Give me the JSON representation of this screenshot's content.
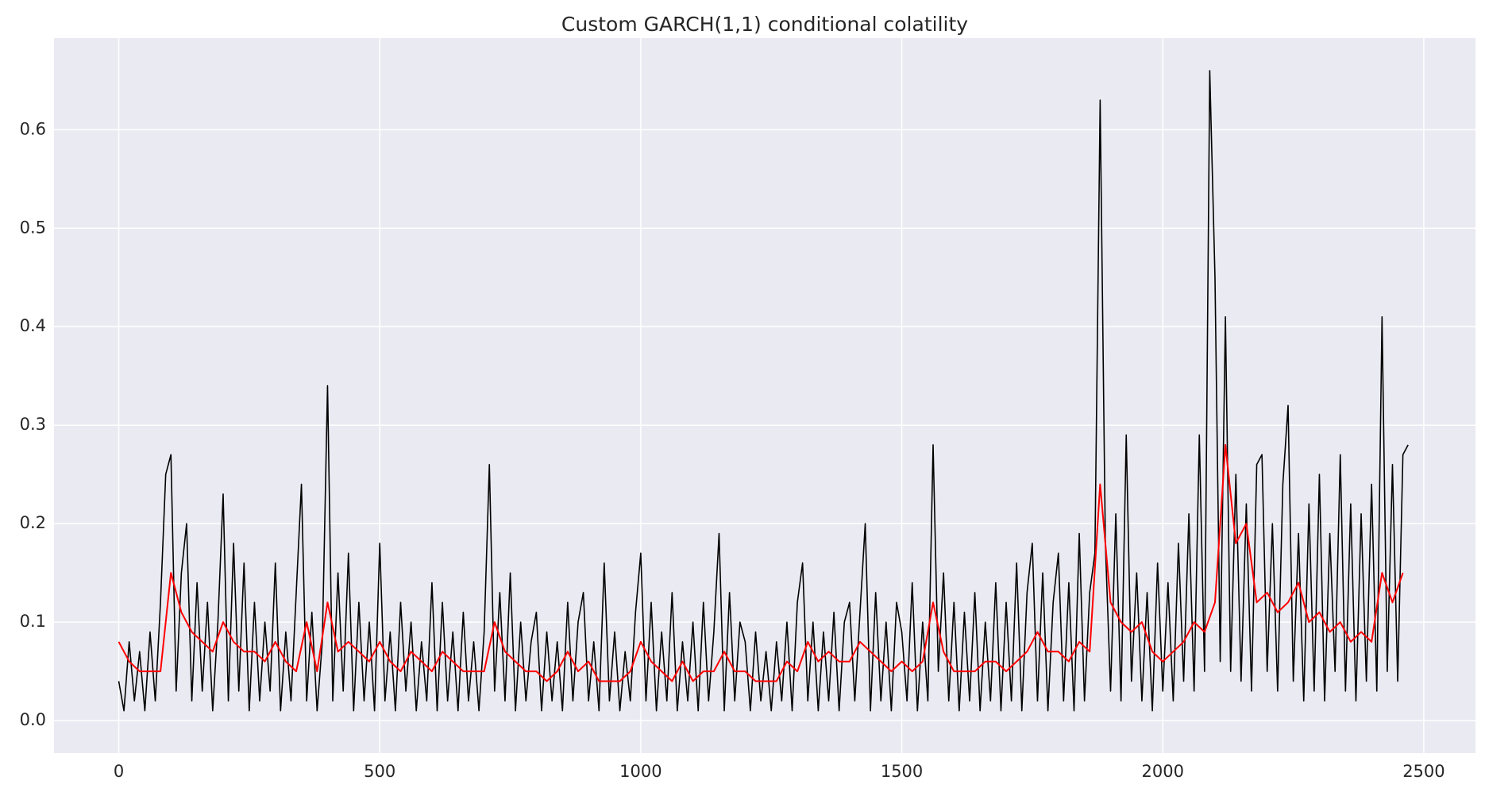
{
  "chart_data": {
    "type": "line",
    "title": "Custom GARCH(1,1) conditional colatility",
    "xlim": [
      -124,
      2599
    ],
    "ylim": [
      -0.033,
      0.693
    ],
    "xticks": [
      0,
      500,
      1000,
      1500,
      2000,
      2500
    ],
    "yticks": [
      {
        "value": 0,
        "label": "0.0"
      },
      0.1,
      0.2,
      0.3,
      0.4,
      0.5,
      0.6
    ],
    "grid": true,
    "series": [
      {
        "color": "#000000",
        "x": [
          0,
          10,
          20,
          30,
          40,
          50,
          60,
          70,
          80,
          90,
          100,
          110,
          120,
          130,
          140,
          150,
          160,
          170,
          180,
          190,
          200,
          210,
          220,
          230,
          240,
          250,
          260,
          270,
          280,
          290,
          300,
          310,
          320,
          330,
          340,
          350,
          360,
          370,
          380,
          390,
          400,
          410,
          420,
          430,
          440,
          450,
          460,
          470,
          480,
          490,
          500,
          510,
          520,
          530,
          540,
          550,
          560,
          570,
          580,
          590,
          600,
          610,
          620,
          630,
          640,
          650,
          660,
          670,
          680,
          690,
          700,
          710,
          720,
          730,
          740,
          750,
          760,
          770,
          780,
          790,
          800,
          810,
          820,
          830,
          840,
          850,
          860,
          870,
          880,
          890,
          900,
          910,
          920,
          930,
          940,
          950,
          960,
          970,
          980,
          990,
          1000,
          1010,
          1020,
          1030,
          1040,
          1050,
          1060,
          1070,
          1080,
          1090,
          1100,
          1110,
          1120,
          1130,
          1140,
          1150,
          1160,
          1170,
          1180,
          1190,
          1200,
          1210,
          1220,
          1230,
          1240,
          1250,
          1260,
          1270,
          1280,
          1290,
          1300,
          1310,
          1320,
          1330,
          1340,
          1350,
          1360,
          1370,
          1380,
          1390,
          1400,
          1410,
          1420,
          1430,
          1440,
          1450,
          1460,
          1470,
          1480,
          1490,
          1500,
          1510,
          1520,
          1530,
          1540,
          1550,
          1560,
          1570,
          1580,
          1590,
          1600,
          1610,
          1620,
          1630,
          1640,
          1650,
          1660,
          1670,
          1680,
          1690,
          1700,
          1710,
          1720,
          1730,
          1740,
          1750,
          1760,
          1770,
          1780,
          1790,
          1800,
          1810,
          1820,
          1830,
          1840,
          1850,
          1860,
          1870,
          1880,
          1890,
          1900,
          1910,
          1920,
          1930,
          1940,
          1950,
          1960,
          1970,
          1980,
          1990,
          2000,
          2010,
          2020,
          2030,
          2040,
          2050,
          2060,
          2070,
          2080,
          2090,
          2100,
          2110,
          2120,
          2130,
          2140,
          2150,
          2160,
          2170,
          2180,
          2190,
          2200,
          2210,
          2220,
          2230,
          2240,
          2250,
          2260,
          2270,
          2280,
          2290,
          2300,
          2310,
          2320,
          2330,
          2340,
          2350,
          2360,
          2370,
          2380,
          2390,
          2400,
          2410,
          2420,
          2430,
          2440,
          2450,
          2460,
          2470
        ],
        "values": [
          0.04,
          0.01,
          0.08,
          0.02,
          0.07,
          0.01,
          0.09,
          0.02,
          0.12,
          0.25,
          0.27,
          0.03,
          0.15,
          0.2,
          0.02,
          0.14,
          0.03,
          0.12,
          0.01,
          0.1,
          0.23,
          0.02,
          0.18,
          0.03,
          0.16,
          0.01,
          0.12,
          0.02,
          0.1,
          0.03,
          0.16,
          0.01,
          0.09,
          0.02,
          0.13,
          0.24,
          0.02,
          0.11,
          0.01,
          0.08,
          0.34,
          0.02,
          0.15,
          0.03,
          0.17,
          0.01,
          0.12,
          0.02,
          0.1,
          0.01,
          0.18,
          0.02,
          0.09,
          0.01,
          0.12,
          0.03,
          0.1,
          0.01,
          0.08,
          0.02,
          0.14,
          0.01,
          0.12,
          0.02,
          0.09,
          0.01,
          0.11,
          0.02,
          0.08,
          0.01,
          0.09,
          0.26,
          0.03,
          0.13,
          0.02,
          0.15,
          0.01,
          0.1,
          0.02,
          0.08,
          0.11,
          0.01,
          0.09,
          0.02,
          0.08,
          0.01,
          0.12,
          0.02,
          0.1,
          0.13,
          0.02,
          0.08,
          0.01,
          0.16,
          0.02,
          0.09,
          0.01,
          0.07,
          0.02,
          0.11,
          0.17,
          0.02,
          0.12,
          0.01,
          0.09,
          0.02,
          0.13,
          0.01,
          0.08,
          0.02,
          0.1,
          0.01,
          0.12,
          0.02,
          0.09,
          0.19,
          0.01,
          0.13,
          0.02,
          0.1,
          0.08,
          0.01,
          0.09,
          0.02,
          0.07,
          0.01,
          0.08,
          0.02,
          0.1,
          0.01,
          0.12,
          0.16,
          0.02,
          0.1,
          0.01,
          0.09,
          0.02,
          0.11,
          0.01,
          0.1,
          0.12,
          0.02,
          0.11,
          0.2,
          0.01,
          0.13,
          0.02,
          0.1,
          0.01,
          0.12,
          0.09,
          0.02,
          0.14,
          0.01,
          0.1,
          0.02,
          0.28,
          0.05,
          0.15,
          0.02,
          0.12,
          0.01,
          0.11,
          0.02,
          0.13,
          0.01,
          0.1,
          0.02,
          0.14,
          0.01,
          0.12,
          0.02,
          0.16,
          0.01,
          0.13,
          0.18,
          0.02,
          0.15,
          0.01,
          0.12,
          0.17,
          0.02,
          0.14,
          0.01,
          0.19,
          0.02,
          0.13,
          0.17,
          0.63,
          0.18,
          0.03,
          0.21,
          0.02,
          0.29,
          0.04,
          0.15,
          0.02,
          0.13,
          0.01,
          0.16,
          0.03,
          0.14,
          0.02,
          0.18,
          0.04,
          0.21,
          0.03,
          0.29,
          0.05,
          0.66,
          0.45,
          0.06,
          0.41,
          0.05,
          0.25,
          0.04,
          0.22,
          0.03,
          0.26,
          0.27,
          0.05,
          0.2,
          0.03,
          0.24,
          0.32,
          0.04,
          0.19,
          0.02,
          0.22,
          0.03,
          0.25,
          0.02,
          0.19,
          0.05,
          0.27,
          0.03,
          0.22,
          0.02,
          0.21,
          0.04,
          0.24,
          0.03,
          0.41,
          0.05,
          0.26,
          0.04,
          0.27,
          0.28
        ]
      },
      {
        "color": "#ff0000",
        "x": [
          0,
          20,
          40,
          60,
          80,
          100,
          120,
          140,
          160,
          180,
          200,
          220,
          240,
          260,
          280,
          300,
          320,
          340,
          360,
          380,
          400,
          420,
          440,
          460,
          480,
          500,
          520,
          540,
          560,
          580,
          600,
          620,
          640,
          660,
          680,
          700,
          720,
          740,
          760,
          780,
          800,
          820,
          840,
          860,
          880,
          900,
          920,
          940,
          960,
          980,
          1000,
          1020,
          1040,
          1060,
          1080,
          1100,
          1120,
          1140,
          1160,
          1180,
          1200,
          1220,
          1240,
          1260,
          1280,
          1300,
          1320,
          1340,
          1360,
          1380,
          1400,
          1420,
          1440,
          1460,
          1480,
          1500,
          1520,
          1540,
          1560,
          1580,
          1600,
          1620,
          1640,
          1660,
          1680,
          1700,
          1720,
          1740,
          1760,
          1780,
          1800,
          1820,
          1840,
          1860,
          1880,
          1900,
          1920,
          1940,
          1960,
          1980,
          2000,
          2020,
          2040,
          2060,
          2080,
          2100,
          2120,
          2140,
          2160,
          2180,
          2200,
          2220,
          2240,
          2260,
          2280,
          2300,
          2320,
          2340,
          2360,
          2380,
          2400,
          2420,
          2440,
          2460
        ],
        "values": [
          0.08,
          0.06,
          0.05,
          0.05,
          0.05,
          0.15,
          0.11,
          0.09,
          0.08,
          0.07,
          0.1,
          0.08,
          0.07,
          0.07,
          0.06,
          0.08,
          0.06,
          0.05,
          0.1,
          0.05,
          0.12,
          0.07,
          0.08,
          0.07,
          0.06,
          0.08,
          0.06,
          0.05,
          0.07,
          0.06,
          0.05,
          0.07,
          0.06,
          0.05,
          0.05,
          0.05,
          0.1,
          0.07,
          0.06,
          0.05,
          0.05,
          0.04,
          0.05,
          0.07,
          0.05,
          0.06,
          0.04,
          0.04,
          0.04,
          0.05,
          0.08,
          0.06,
          0.05,
          0.04,
          0.06,
          0.04,
          0.05,
          0.05,
          0.07,
          0.05,
          0.05,
          0.04,
          0.04,
          0.04,
          0.06,
          0.05,
          0.08,
          0.06,
          0.07,
          0.06,
          0.06,
          0.08,
          0.07,
          0.06,
          0.05,
          0.06,
          0.05,
          0.06,
          0.12,
          0.07,
          0.05,
          0.05,
          0.05,
          0.06,
          0.06,
          0.05,
          0.06,
          0.07,
          0.09,
          0.07,
          0.07,
          0.06,
          0.08,
          0.07,
          0.24,
          0.12,
          0.1,
          0.09,
          0.1,
          0.07,
          0.06,
          0.07,
          0.08,
          0.1,
          0.09,
          0.12,
          0.28,
          0.18,
          0.2,
          0.12,
          0.13,
          0.11,
          0.12,
          0.14,
          0.1,
          0.11,
          0.09,
          0.1,
          0.08,
          0.09,
          0.08,
          0.15,
          0.12,
          0.15
        ]
      }
    ]
  }
}
